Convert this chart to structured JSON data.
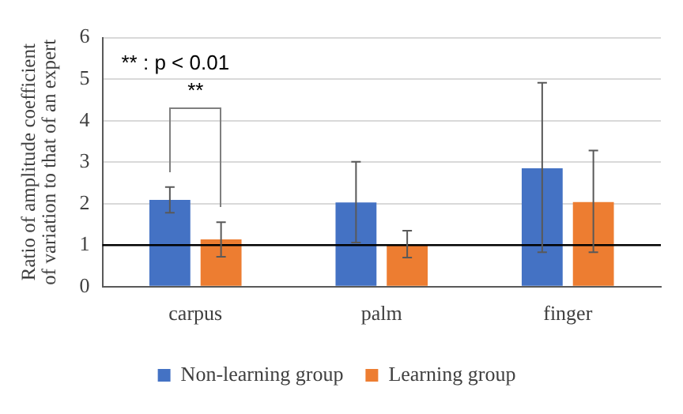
{
  "chart_data": {
    "type": "bar",
    "ylabel": "Ratio of amplitude coefficient of variation to that of an expert",
    "categories": [
      "carpus",
      "palm",
      "finger"
    ],
    "series": [
      {
        "name": "Non-learning group",
        "color": "#4472c4",
        "values": [
          2.09,
          2.03,
          2.85
        ],
        "errors": [
          [
            1.78,
            2.4
          ],
          [
            1.06,
            3.01
          ],
          [
            0.83,
            4.91
          ]
        ]
      },
      {
        "name": "Learning group",
        "color": "#ed7d31",
        "values": [
          1.14,
          1.02,
          2.04
        ],
        "errors": [
          [
            0.72,
            1.55
          ],
          [
            0.7,
            1.35
          ],
          [
            0.83,
            3.28
          ]
        ]
      }
    ],
    "ylim": [
      0,
      6
    ],
    "yticks": [
      0,
      1,
      2,
      3,
      4,
      5,
      6
    ],
    "grid": "y",
    "legend": "bottom",
    "ref_lines": [
      {
        "axis": "y",
        "value": 1,
        "color": "#000000"
      }
    ],
    "annotations": [
      "** : p < 0.01",
      "**"
    ]
  }
}
